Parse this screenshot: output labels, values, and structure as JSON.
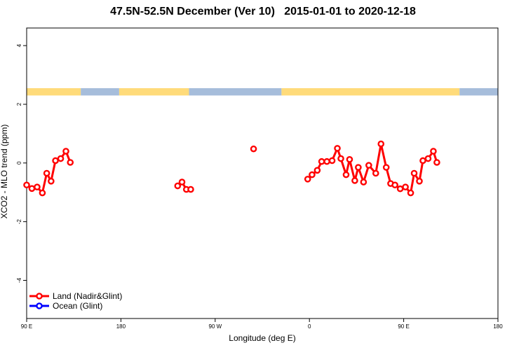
{
  "chart_data": {
    "type": "line",
    "title": "47.5N-52.5N December (Ver 10)   2015-01-01 to 2020-12-18",
    "xlabel": "Longitude (deg E)",
    "ylabel": "XCO2 - MLO trend (ppm)",
    "xlim": [
      -90,
      180
    ],
    "ylim": [
      -5.3,
      4.6
    ],
    "xticks": [
      {
        "value": -90,
        "label": "90 E"
      },
      {
        "value": -36,
        "label": "180"
      },
      {
        "value": 18,
        "label": "90 W"
      },
      {
        "value": 72,
        "label": "0"
      },
      {
        "value": 126,
        "label": "90 E"
      },
      {
        "value": 180,
        "label": "180"
      }
    ],
    "yticks": [
      {
        "value": -4,
        "label": "-4"
      },
      {
        "value": -2,
        "label": "-2"
      },
      {
        "value": 0,
        "label": "0"
      },
      {
        "value": 2,
        "label": "2"
      },
      {
        "value": 4,
        "label": "4"
      }
    ],
    "legend_position": "bottom-left",
    "grid": false,
    "surface_band": {
      "y_range": [
        2.3,
        2.55
      ],
      "land_color": "#FFDB7A",
      "ocean_color": "#A6BDDB",
      "segments": [
        {
          "type": "land",
          "from": -90,
          "to": -59
        },
        {
          "type": "ocean",
          "from": -59,
          "to": -37
        },
        {
          "type": "land",
          "from": -37,
          "to": 3
        },
        {
          "type": "ocean",
          "from": 3,
          "to": 56
        },
        {
          "type": "land",
          "from": 56,
          "to": 158
        },
        {
          "type": "ocean",
          "from": 158,
          "to": 180
        }
      ]
    },
    "series": [
      {
        "name": "Land (Nadir&Glint)",
        "color": "#FF0000",
        "segments": [
          [
            [
              -90,
              -0.75
            ],
            [
              -87,
              -0.87
            ],
            [
              -84,
              -0.82
            ],
            [
              -81,
              -1.02
            ],
            [
              -78.5,
              -0.35
            ],
            [
              -76,
              -0.62
            ],
            [
              -73.5,
              0.08
            ],
            [
              -70.5,
              0.15
            ],
            [
              -67.5,
              0.4
            ],
            [
              -65,
              0.02
            ]
          ],
          [
            [
              -3.5,
              -0.78
            ],
            [
              -1,
              -0.65
            ],
            [
              1.5,
              -0.9
            ],
            [
              4,
              -0.9
            ]
          ],
          [
            [
              40,
              0.48
            ]
          ],
          [
            [
              71,
              -0.55
            ],
            [
              73.5,
              -0.4
            ],
            [
              76.5,
              -0.25
            ],
            [
              79,
              0.05
            ],
            [
              82,
              0.05
            ],
            [
              85,
              0.08
            ],
            [
              88,
              0.5
            ],
            [
              90,
              0.15
            ],
            [
              93,
              -0.4
            ],
            [
              95,
              0.12
            ],
            [
              98,
              -0.6
            ],
            [
              100,
              -0.15
            ],
            [
              103,
              -0.65
            ],
            [
              106,
              -0.08
            ],
            [
              110,
              -0.35
            ],
            [
              113,
              0.65
            ],
            [
              116,
              -0.15
            ],
            [
              118.5,
              -0.7
            ],
            [
              121,
              -0.75
            ],
            [
              124,
              -0.88
            ],
            [
              127,
              -0.82
            ],
            [
              130,
              -1.02
            ],
            [
              132,
              -0.35
            ],
            [
              135,
              -0.62
            ],
            [
              137,
              0.08
            ],
            [
              140,
              0.15
            ],
            [
              143,
              0.4
            ],
            [
              145,
              0.02
            ]
          ]
        ]
      },
      {
        "name": "Ocean (Glint)",
        "color": "#0000FF",
        "segments": []
      }
    ]
  }
}
